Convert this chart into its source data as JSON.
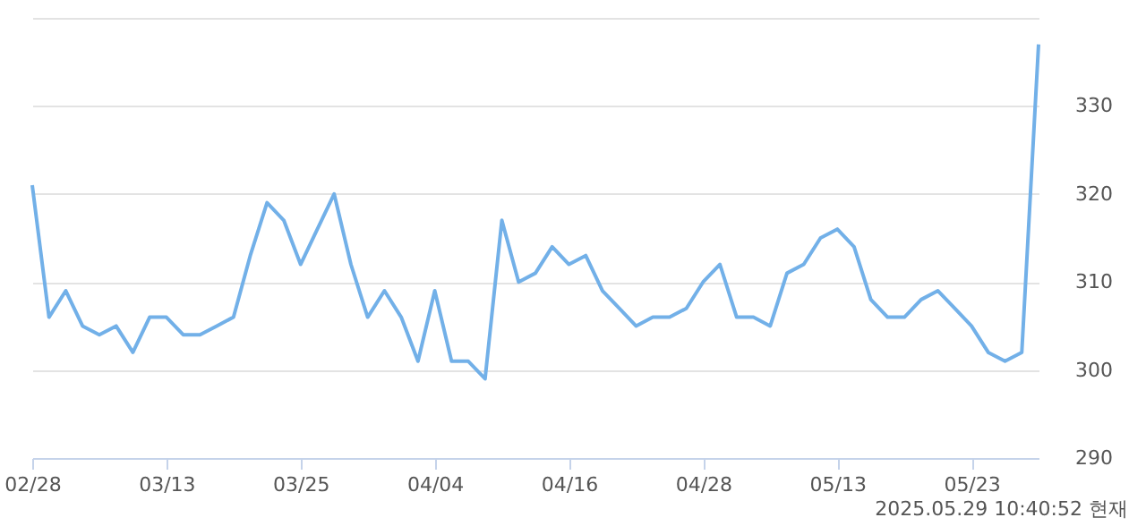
{
  "chart_data": {
    "type": "line",
    "categories": [
      "02/28",
      null,
      null,
      null,
      null,
      null,
      null,
      null,
      "03/13",
      null,
      null,
      null,
      null,
      null,
      null,
      null,
      "03/25",
      null,
      null,
      null,
      null,
      null,
      null,
      null,
      "04/04",
      null,
      null,
      null,
      null,
      null,
      null,
      null,
      "04/16",
      null,
      null,
      null,
      null,
      null,
      null,
      null,
      "04/28",
      null,
      null,
      null,
      null,
      null,
      null,
      null,
      "05/13",
      null,
      null,
      null,
      null,
      null,
      null,
      null,
      "05/23",
      null,
      null,
      null,
      null
    ],
    "series": [
      {
        "color": "#72b0e8",
        "values": [
          321,
          306,
          309,
          305,
          304,
          305,
          302,
          306,
          306,
          304,
          304,
          305,
          306,
          313,
          319,
          317,
          312,
          316,
          320,
          312,
          306,
          309,
          306,
          301,
          309,
          301,
          301,
          299,
          317,
          310,
          311,
          314,
          312,
          313,
          309,
          307,
          305,
          306,
          306,
          307,
          310,
          312,
          306,
          306,
          305,
          311,
          312,
          315,
          316,
          314,
          308,
          306,
          306,
          308,
          309,
          307,
          305,
          302,
          301,
          302,
          337
        ]
      }
    ],
    "ylim": [
      290,
      340
    ],
    "yticks": [
      290,
      300,
      310,
      320,
      330,
      {
        "value": 340,
        "label": null
      }
    ],
    "grid": "y",
    "marker": "none",
    "line_style": "solid",
    "annotations": [
      "2025.05.29 10:40:52 현재"
    ]
  }
}
